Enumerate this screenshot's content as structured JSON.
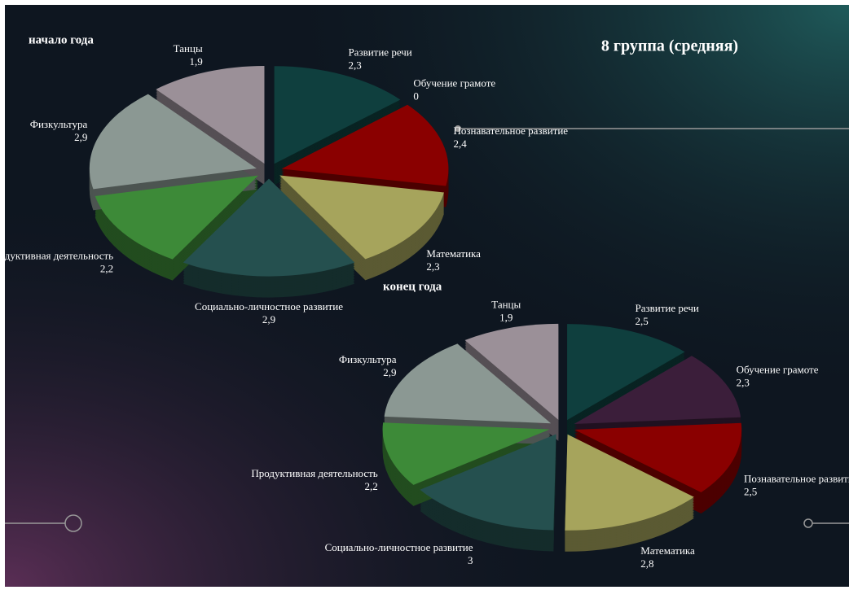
{
  "title": "8 группа  (средняя)",
  "chart_data": [
    {
      "type": "pie",
      "title": "начало года",
      "categories": [
        "Развитие речи",
        "Обучение грамоте",
        "Познавательное развитие",
        "Математика",
        "Социально-личностное развитие",
        "Продуктивная деятельность",
        "Физкультура",
        "Танцы"
      ],
      "values": [
        2.3,
        0,
        2.4,
        2.3,
        2.9,
        2.2,
        2.9,
        1.9
      ],
      "value_labels": [
        "2,3",
        "0",
        "2,4",
        "2,3",
        "2,9",
        "2,2",
        "2,9",
        "1,9"
      ],
      "colors": [
        "#0f3f3e",
        "#3b1e3a",
        "#8a0000",
        "#a6a45c",
        "#25504f",
        "#3d8a38",
        "#8b9893",
        "#9b9098"
      ]
    },
    {
      "type": "pie",
      "title": "конец года",
      "categories": [
        "Развитие речи",
        "Обучение грамоте",
        "Познавательное развитие",
        "Математика",
        "Социально-личностное развитие",
        "Продуктивная деятельность",
        "Физкультура",
        "Танцы"
      ],
      "values": [
        2.5,
        2.3,
        2.5,
        2.8,
        3,
        2.2,
        2.9,
        1.9
      ],
      "value_labels": [
        "2,5",
        "2,3",
        "2,5",
        "2,8",
        "3",
        "2,2",
        "2,9",
        "1,9"
      ],
      "colors": [
        "#0f3f3e",
        "#3b1e3a",
        "#8a0000",
        "#a6a45c",
        "#25504f",
        "#3d8a38",
        "#8b9893",
        "#9b9098"
      ]
    }
  ]
}
